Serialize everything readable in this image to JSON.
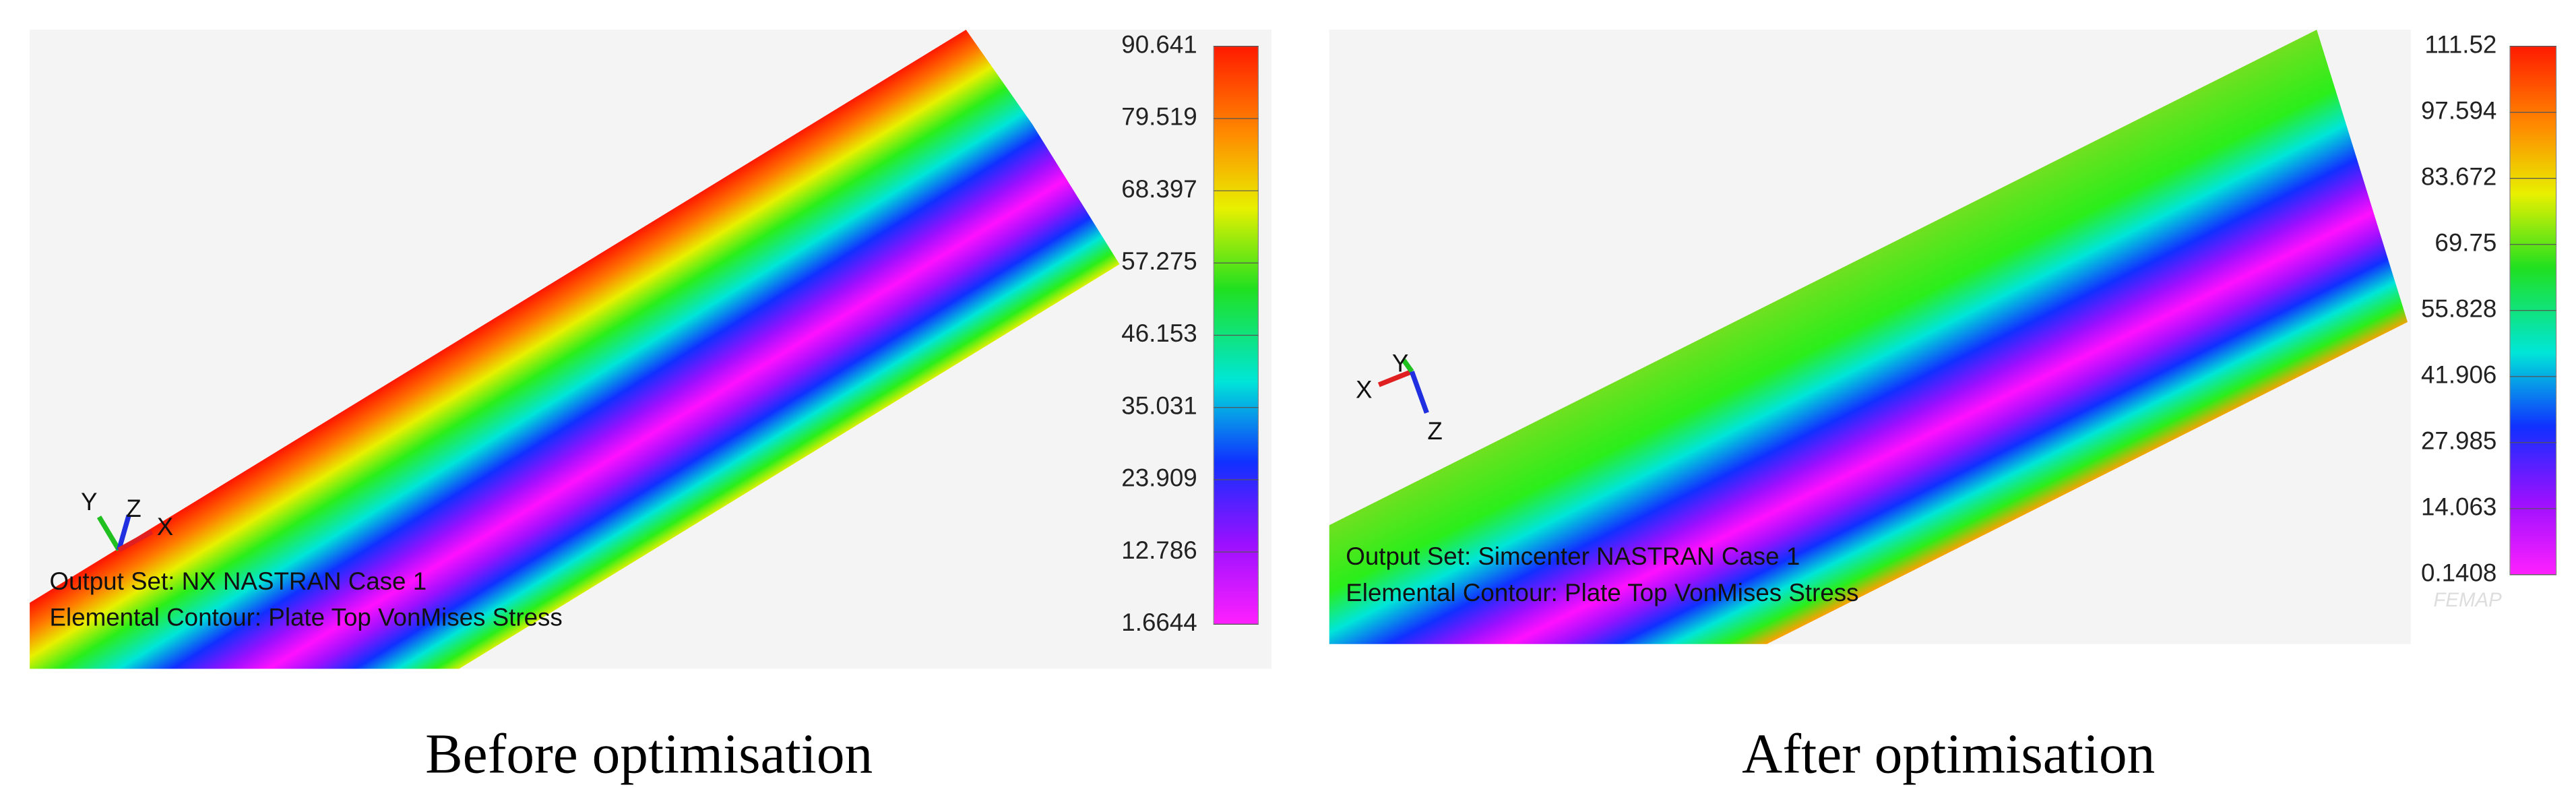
{
  "panels": [
    {
      "legend": [
        "90.641",
        "79.519",
        "68.397",
        "57.275",
        "46.153",
        "35.031",
        "23.909",
        "12.786",
        "1.6644"
      ],
      "output_set": "Output Set: NX NASTRAN Case 1",
      "contour": "Elemental Contour: Plate Top VonMises Stress",
      "triad": [
        "Y",
        "Z",
        "X"
      ],
      "caption": "Before optimisation"
    },
    {
      "legend": [
        "111.52",
        "97.594",
        "83.672",
        "69.75",
        "55.828",
        "41.906",
        "27.985",
        "14.063",
        "0.1408"
      ],
      "output_set": "Output Set: Simcenter NASTRAN Case 1",
      "contour": "Elemental Contour: Plate Top VonMises Stress",
      "triad": [
        "X",
        "Y",
        "Z"
      ],
      "watermark": "FEMAP",
      "caption": "After optimisation"
    }
  ]
}
